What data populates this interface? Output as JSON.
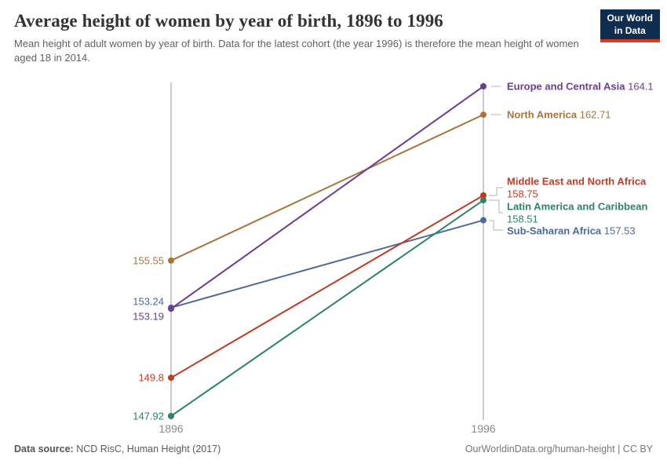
{
  "header": {
    "title": "Average height of women by year of birth, 1896 to 1996",
    "subtitle": "Mean height of adult women by year of birth. Data for the latest cohort (the year 1996) is therefore the mean height of women aged 18 in 2014.",
    "logo": {
      "line1": "Our World",
      "line2": "in Data",
      "bg_color": "#0f2d4e",
      "stripe_color": "#dc3a1f"
    }
  },
  "chart_data": {
    "type": "line",
    "variant": "slope",
    "x": [
      1896,
      1996
    ],
    "x_tick_labels": [
      "1896",
      "1996"
    ],
    "series": [
      {
        "name": "Europe and Central Asia",
        "values": [
          153.19,
          164.1
        ],
        "color": "#6d3e91"
      },
      {
        "name": "North America",
        "values": [
          155.55,
          162.71
        ],
        "color": "#a8763d"
      },
      {
        "name": "Middle East and North Africa",
        "values": [
          149.8,
          158.75
        ],
        "color": "#bc3e26"
      },
      {
        "name": "Latin America and Caribbean",
        "values": [
          147.92,
          158.51
        ],
        "color": "#2c8465"
      },
      {
        "name": "Sub-Saharan Africa",
        "values": [
          153.24,
          157.53
        ],
        "color": "#4c6a9c"
      }
    ],
    "ylim": [
      147.92,
      164.1
    ],
    "grid": false,
    "legend": "end-labels",
    "axis_color": "#cccccc",
    "tick_label_color": "#8a8a8a"
  },
  "footer": {
    "source_label": "Data source:",
    "source_value": " NCD RisC, Human Height (2017)",
    "link": "OurWorldinData.org/human-height | CC BY"
  }
}
